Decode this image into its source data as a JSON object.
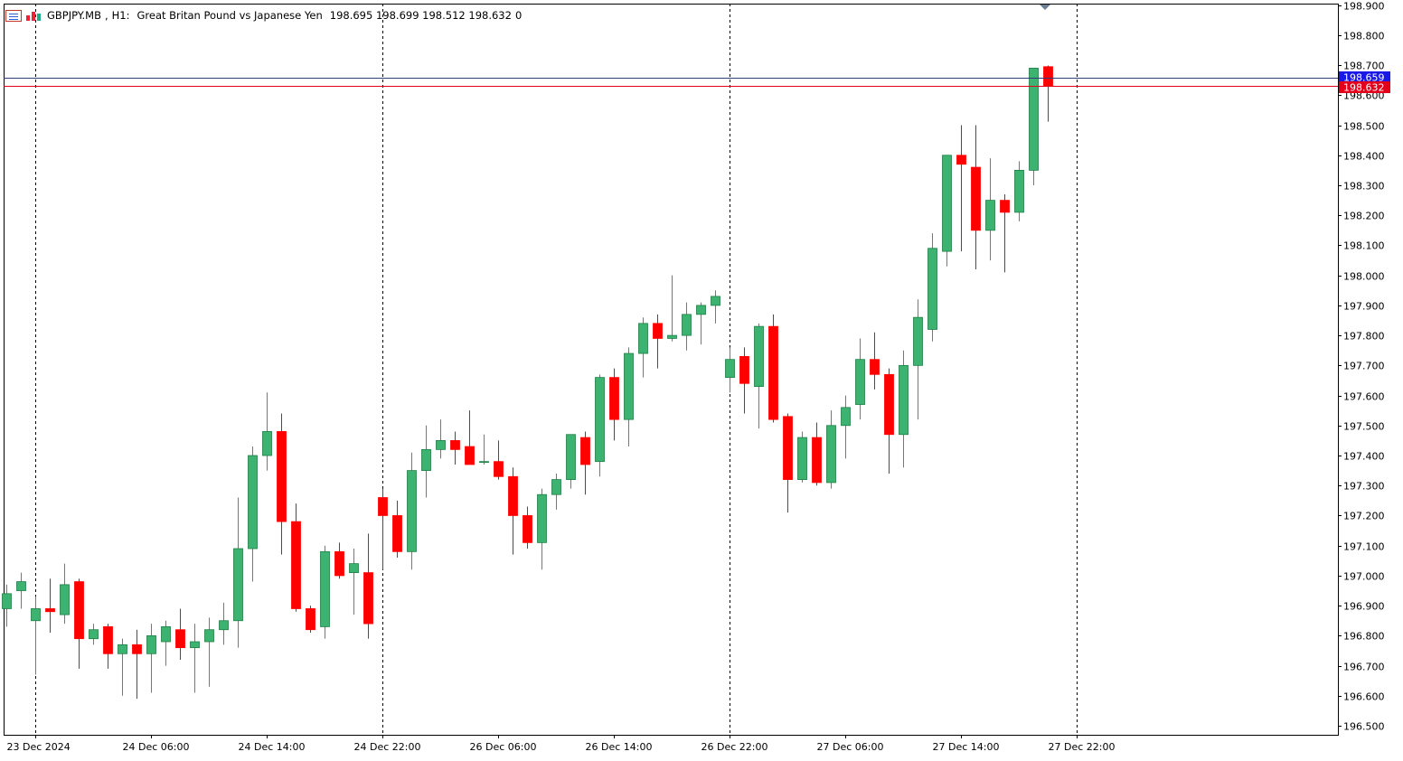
{
  "header": {
    "symbol": "GBPJPY.MB",
    "timeframe": "H1:",
    "description": "Great Britan Pound vs Japanese Yen",
    "ohlc": "198.695 198.699 198.512 198.632",
    "extra": "0"
  },
  "icons": [
    "chart-window-icon",
    "bar-chart-icon"
  ],
  "colors": {
    "bull": "#26a65b",
    "bull_fill": "#3cb371",
    "bear": "#ff0000",
    "ask_line": "#2c3e75",
    "bid_line": "#e3001b",
    "ask_badge": "#1a1ae6",
    "bid_badge": "#e3001b",
    "grid": "#000000",
    "axis_text": "#000000"
  },
  "chart_data": {
    "type": "candlestick",
    "title": "GBPJPY.MB, H1",
    "y_axis": {
      "range": [
        196.47,
        198.905
      ],
      "ticks": [
        196.5,
        196.6,
        196.7,
        196.8,
        196.9,
        197.0,
        197.1,
        197.2,
        197.3,
        197.4,
        197.5,
        197.6,
        197.7,
        197.8,
        197.9,
        198.0,
        198.1,
        198.2,
        198.3,
        198.4,
        198.5,
        198.6,
        198.7,
        198.8,
        198.9
      ],
      "tick_labels": [
        "196.500",
        "196.600",
        "196.700",
        "196.800",
        "196.900",
        "197.000",
        "197.100",
        "197.200",
        "197.300",
        "197.400",
        "197.500",
        "197.600",
        "197.700",
        "197.800",
        "197.900",
        "198.000",
        "198.100",
        "198.200",
        "198.300",
        "198.400",
        "198.500",
        "198.600",
        "198.700",
        "198.800",
        "198.900"
      ]
    },
    "x_labels": [
      {
        "index": 2,
        "label": "23 Dec 2024"
      },
      {
        "index": 10,
        "label": "24 Dec 06:00"
      },
      {
        "index": 18,
        "label": "24 Dec 14:00"
      },
      {
        "index": 26,
        "label": "24 Dec 22:00"
      },
      {
        "index": 34,
        "label": "26 Dec 06:00"
      },
      {
        "index": 42,
        "label": "26 Dec 14:00"
      },
      {
        "index": 50,
        "label": "26 Dec 22:00"
      },
      {
        "index": 58,
        "label": "27 Dec 06:00"
      },
      {
        "index": 66,
        "label": "27 Dec 14:00"
      },
      {
        "index": 74,
        "label": "27 Dec 22:00"
      }
    ],
    "day_separators": [
      2,
      26,
      50,
      74
    ],
    "bid": 198.632,
    "ask": 198.659,
    "bid_label": "198.632",
    "ask_label": "198.659",
    "candles": [
      {
        "o": 196.89,
        "h": 196.97,
        "l": 196.83,
        "c": 196.94
      },
      {
        "o": 196.95,
        "h": 197.01,
        "l": 196.89,
        "c": 196.98
      },
      {
        "o": 196.85,
        "h": 196.93,
        "l": 196.67,
        "c": 196.89
      },
      {
        "o": 196.89,
        "h": 196.99,
        "l": 196.81,
        "c": 196.88
      },
      {
        "o": 196.87,
        "h": 197.04,
        "l": 196.84,
        "c": 196.97
      },
      {
        "o": 196.98,
        "h": 196.99,
        "l": 196.69,
        "c": 196.79
      },
      {
        "o": 196.79,
        "h": 196.84,
        "l": 196.77,
        "c": 196.82
      },
      {
        "o": 196.83,
        "h": 196.84,
        "l": 196.69,
        "c": 196.74
      },
      {
        "o": 196.74,
        "h": 196.79,
        "l": 196.6,
        "c": 196.77
      },
      {
        "o": 196.77,
        "h": 196.82,
        "l": 196.59,
        "c": 196.74
      },
      {
        "o": 196.74,
        "h": 196.84,
        "l": 196.61,
        "c": 196.8
      },
      {
        "o": 196.78,
        "h": 196.85,
        "l": 196.7,
        "c": 196.83
      },
      {
        "o": 196.82,
        "h": 196.89,
        "l": 196.72,
        "c": 196.76
      },
      {
        "o": 196.76,
        "h": 196.84,
        "l": 196.61,
        "c": 196.78
      },
      {
        "o": 196.78,
        "h": 196.86,
        "l": 196.63,
        "c": 196.82
      },
      {
        "o": 196.82,
        "h": 196.91,
        "l": 196.77,
        "c": 196.85
      },
      {
        "o": 196.85,
        "h": 197.26,
        "l": 196.76,
        "c": 197.09
      },
      {
        "o": 197.09,
        "h": 197.43,
        "l": 196.98,
        "c": 197.4
      },
      {
        "o": 197.4,
        "h": 197.61,
        "l": 197.35,
        "c": 197.48
      },
      {
        "o": 197.48,
        "h": 197.54,
        "l": 197.07,
        "c": 197.18
      },
      {
        "o": 197.18,
        "h": 197.24,
        "l": 196.88,
        "c": 196.89
      },
      {
        "o": 196.89,
        "h": 196.9,
        "l": 196.81,
        "c": 196.82
      },
      {
        "o": 196.83,
        "h": 197.1,
        "l": 196.79,
        "c": 197.08
      },
      {
        "o": 197.08,
        "h": 197.11,
        "l": 196.99,
        "c": 197.0
      },
      {
        "o": 197.01,
        "h": 197.09,
        "l": 196.87,
        "c": 197.04
      },
      {
        "o": 197.01,
        "h": 197.14,
        "l": 196.79,
        "c": 196.84
      },
      {
        "o": 197.26,
        "h": 197.29,
        "l": 197.02,
        "c": 197.2
      },
      {
        "o": 197.2,
        "h": 197.25,
        "l": 197.06,
        "c": 197.08
      },
      {
        "o": 197.08,
        "h": 197.41,
        "l": 197.02,
        "c": 197.35
      },
      {
        "o": 197.35,
        "h": 197.5,
        "l": 197.26,
        "c": 197.42
      },
      {
        "o": 197.42,
        "h": 197.52,
        "l": 197.39,
        "c": 197.45
      },
      {
        "o": 197.45,
        "h": 197.48,
        "l": 197.37,
        "c": 197.42
      },
      {
        "o": 197.43,
        "h": 197.55,
        "l": 197.38,
        "c": 197.37
      },
      {
        "o": 197.38,
        "h": 197.47,
        "l": 197.37,
        "c": 197.38
      },
      {
        "o": 197.38,
        "h": 197.45,
        "l": 197.32,
        "c": 197.33
      },
      {
        "o": 197.33,
        "h": 197.36,
        "l": 197.07,
        "c": 197.2
      },
      {
        "o": 197.2,
        "h": 197.23,
        "l": 197.09,
        "c": 197.11
      },
      {
        "o": 197.11,
        "h": 197.29,
        "l": 197.02,
        "c": 197.27
      },
      {
        "o": 197.27,
        "h": 197.34,
        "l": 197.22,
        "c": 197.32
      },
      {
        "o": 197.32,
        "h": 197.47,
        "l": 197.29,
        "c": 197.47
      },
      {
        "o": 197.46,
        "h": 197.48,
        "l": 197.27,
        "c": 197.37
      },
      {
        "o": 197.38,
        "h": 197.67,
        "l": 197.33,
        "c": 197.66
      },
      {
        "o": 197.66,
        "h": 197.69,
        "l": 197.45,
        "c": 197.52
      },
      {
        "o": 197.52,
        "h": 197.76,
        "l": 197.43,
        "c": 197.74
      },
      {
        "o": 197.74,
        "h": 197.86,
        "l": 197.66,
        "c": 197.84
      },
      {
        "o": 197.84,
        "h": 197.87,
        "l": 197.69,
        "c": 197.79
      },
      {
        "o": 197.79,
        "h": 198.0,
        "l": 197.78,
        "c": 197.8
      },
      {
        "o": 197.8,
        "h": 197.91,
        "l": 197.75,
        "c": 197.87
      },
      {
        "o": 197.87,
        "h": 197.91,
        "l": 197.77,
        "c": 197.9
      },
      {
        "o": 197.9,
        "h": 197.95,
        "l": 197.84,
        "c": 197.93
      },
      {
        "o": 197.66,
        "h": 197.76,
        "l": 197.61,
        "c": 197.72
      },
      {
        "o": 197.73,
        "h": 197.76,
        "l": 197.54,
        "c": 197.64
      },
      {
        "o": 197.63,
        "h": 197.84,
        "l": 197.49,
        "c": 197.83
      },
      {
        "o": 197.83,
        "h": 197.87,
        "l": 197.51,
        "c": 197.52
      },
      {
        "o": 197.53,
        "h": 197.54,
        "l": 197.21,
        "c": 197.32
      },
      {
        "o": 197.32,
        "h": 197.48,
        "l": 197.31,
        "c": 197.46
      },
      {
        "o": 197.46,
        "h": 197.51,
        "l": 197.3,
        "c": 197.31
      },
      {
        "o": 197.31,
        "h": 197.55,
        "l": 197.29,
        "c": 197.5
      },
      {
        "o": 197.5,
        "h": 197.6,
        "l": 197.39,
        "c": 197.56
      },
      {
        "o": 197.57,
        "h": 197.79,
        "l": 197.52,
        "c": 197.72
      },
      {
        "o": 197.72,
        "h": 197.81,
        "l": 197.62,
        "c": 197.67
      },
      {
        "o": 197.67,
        "h": 197.69,
        "l": 197.34,
        "c": 197.47
      },
      {
        "o": 197.47,
        "h": 197.75,
        "l": 197.36,
        "c": 197.7
      },
      {
        "o": 197.7,
        "h": 197.92,
        "l": 197.52,
        "c": 197.86
      },
      {
        "o": 197.82,
        "h": 198.14,
        "l": 197.78,
        "c": 198.09
      },
      {
        "o": 198.08,
        "h": 198.4,
        "l": 198.03,
        "c": 198.4
      },
      {
        "o": 198.4,
        "h": 198.5,
        "l": 198.08,
        "c": 198.37
      },
      {
        "o": 198.36,
        "h": 198.5,
        "l": 198.02,
        "c": 198.15
      },
      {
        "o": 198.15,
        "h": 198.39,
        "l": 198.05,
        "c": 198.25
      },
      {
        "o": 198.25,
        "h": 198.27,
        "l": 198.01,
        "c": 198.21
      },
      {
        "o": 198.21,
        "h": 198.38,
        "l": 198.18,
        "c": 198.35
      },
      {
        "o": 198.35,
        "h": 198.69,
        "l": 198.3,
        "c": 198.69
      },
      {
        "o": 198.695,
        "h": 198.699,
        "l": 198.512,
        "c": 198.632
      }
    ]
  }
}
